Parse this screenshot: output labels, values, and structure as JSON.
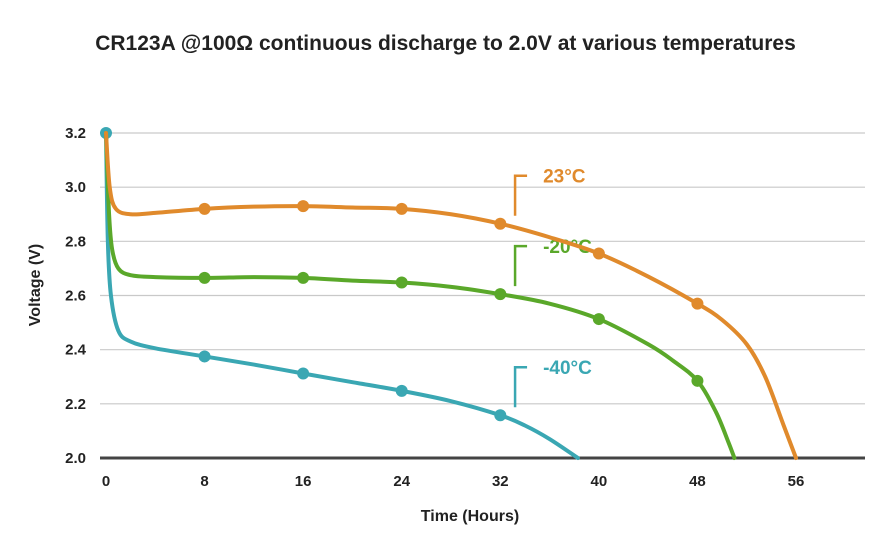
{
  "chart_data": {
    "type": "line",
    "title": "CR123A @100Ω continuous discharge to 2.0V at various temperatures",
    "xlabel": "Time (Hours)",
    "ylabel": "Voltage (V)",
    "xlim": [
      0,
      62
    ],
    "ylim": [
      2.0,
      3.2
    ],
    "xticks": [
      0,
      8,
      16,
      24,
      32,
      40,
      48,
      56
    ],
    "yticks": [
      2.0,
      2.2,
      2.4,
      2.6,
      2.8,
      3.0,
      3.2
    ],
    "ytick_labels": [
      "2.0",
      "2.2",
      "2.4",
      "2.6",
      "2.8",
      "3.0",
      "3.2"
    ],
    "xtick_labels": [
      "0",
      "8",
      "16",
      "24",
      "32",
      "40",
      "48",
      "56"
    ],
    "grid": "horizontal",
    "series": [
      {
        "name": "23°C",
        "color": "#e08a2c",
        "curve": [
          [
            0,
            3.2
          ],
          [
            0.3,
            3.0
          ],
          [
            0.8,
            2.92
          ],
          [
            2,
            2.9
          ],
          [
            4,
            2.905
          ],
          [
            8,
            2.92
          ],
          [
            12,
            2.928
          ],
          [
            16,
            2.93
          ],
          [
            20,
            2.925
          ],
          [
            24,
            2.92
          ],
          [
            28,
            2.9
          ],
          [
            32,
            2.865
          ],
          [
            36,
            2.815
          ],
          [
            40,
            2.755
          ],
          [
            44,
            2.67
          ],
          [
            48,
            2.57
          ],
          [
            50,
            2.51
          ],
          [
            52,
            2.42
          ],
          [
            53.5,
            2.3
          ],
          [
            55,
            2.12
          ],
          [
            56,
            2.0
          ]
        ],
        "markers": [
          [
            8,
            2.92
          ],
          [
            16,
            2.93
          ],
          [
            24,
            2.92
          ],
          [
            32,
            2.865
          ],
          [
            40,
            2.755
          ],
          [
            48,
            2.57
          ]
        ],
        "label_anchor": [
          33.2,
          2.865
        ]
      },
      {
        "name": "-20°C",
        "color": "#5aa82a",
        "curve": [
          [
            0,
            3.2
          ],
          [
            0.25,
            2.9
          ],
          [
            0.5,
            2.77
          ],
          [
            1,
            2.7
          ],
          [
            2,
            2.675
          ],
          [
            4,
            2.668
          ],
          [
            8,
            2.665
          ],
          [
            12,
            2.668
          ],
          [
            16,
            2.665
          ],
          [
            20,
            2.655
          ],
          [
            24,
            2.648
          ],
          [
            28,
            2.632
          ],
          [
            32,
            2.605
          ],
          [
            36,
            2.57
          ],
          [
            40,
            2.513
          ],
          [
            44,
            2.42
          ],
          [
            46,
            2.36
          ],
          [
            48,
            2.285
          ],
          [
            49.5,
            2.17
          ],
          [
            50.5,
            2.06
          ],
          [
            51,
            2.0
          ]
        ],
        "markers": [
          [
            8,
            2.665
          ],
          [
            16,
            2.665
          ],
          [
            24,
            2.648
          ],
          [
            32,
            2.605
          ],
          [
            40,
            2.513
          ],
          [
            48,
            2.285
          ]
        ],
        "label_anchor": [
          33.2,
          2.605
        ]
      },
      {
        "name": "-40°C",
        "color": "#3aa7b3",
        "curve": [
          [
            0,
            3.2
          ],
          [
            0.15,
            2.8
          ],
          [
            0.4,
            2.6
          ],
          [
            1,
            2.47
          ],
          [
            2,
            2.43
          ],
          [
            4,
            2.405
          ],
          [
            8,
            2.375
          ],
          [
            12,
            2.345
          ],
          [
            16,
            2.312
          ],
          [
            20,
            2.28
          ],
          [
            24,
            2.248
          ],
          [
            28,
            2.21
          ],
          [
            32,
            2.158
          ],
          [
            34,
            2.12
          ],
          [
            36,
            2.07
          ],
          [
            38.3,
            2.0
          ]
        ],
        "markers": [
          [
            0,
            3.2
          ],
          [
            8,
            2.375
          ],
          [
            16,
            2.312
          ],
          [
            24,
            2.248
          ],
          [
            32,
            2.158
          ]
        ],
        "label_anchor": [
          33.2,
          2.158
        ]
      }
    ]
  }
}
